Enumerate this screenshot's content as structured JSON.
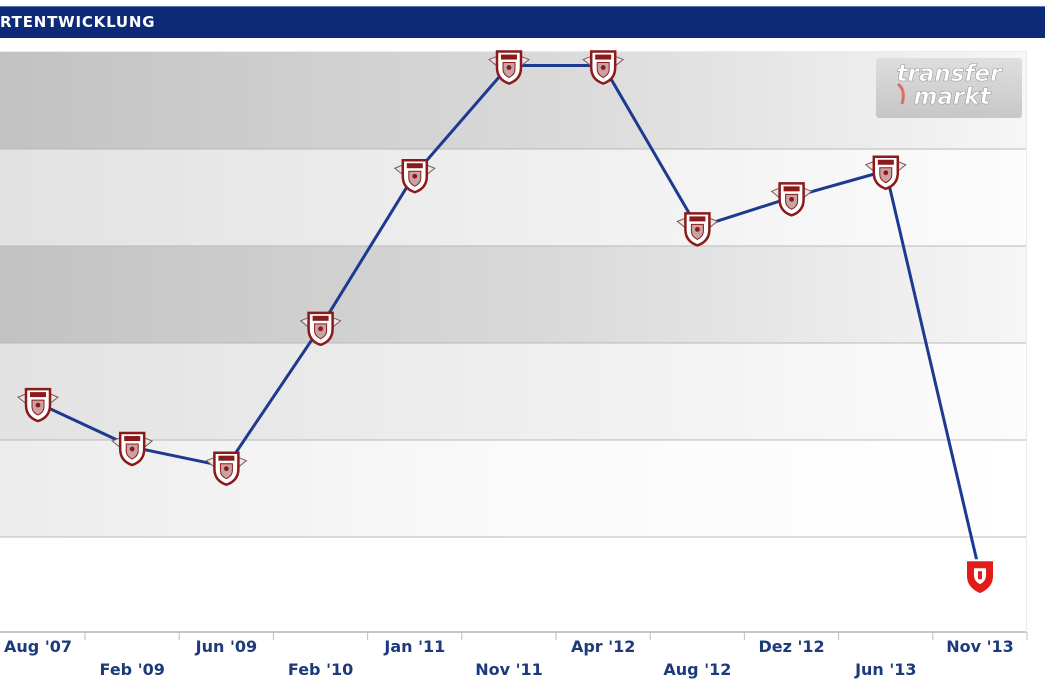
{
  "header": {
    "title": "RTENTWICKLUNG"
  },
  "watermark": {
    "line1": "transfer",
    "line2": "markt"
  },
  "colors": {
    "header": "#0c2a77",
    "line": "#1c3a8f",
    "tick_text": "#1d3a7c",
    "badge_club_a": "#8b1a1a",
    "badge_club_b": "#e21b1b"
  },
  "chart_data": {
    "type": "line",
    "title": "",
    "xlabel": "",
    "ylabel": "",
    "ylim": [
      0,
      5
    ],
    "grid": true,
    "categories": [
      "Aug '07",
      "Feb '09",
      "Jun '09",
      "Feb '10",
      "Jan '11",
      "Nov '11",
      "Apr '12",
      "Aug '12",
      "Dez '12",
      "Jun '13",
      "Nov '13"
    ],
    "series": [
      {
        "values": [
          1.98,
          1.6,
          1.43,
          2.64,
          3.96,
          4.9,
          4.9,
          3.5,
          3.76,
          3.99,
          0.5
        ],
        "markers": [
          "club-a",
          "club-a",
          "club-a",
          "club-a",
          "club-a",
          "club-a",
          "club-a",
          "club-a",
          "club-a",
          "club-a",
          "club-b"
        ]
      }
    ]
  }
}
